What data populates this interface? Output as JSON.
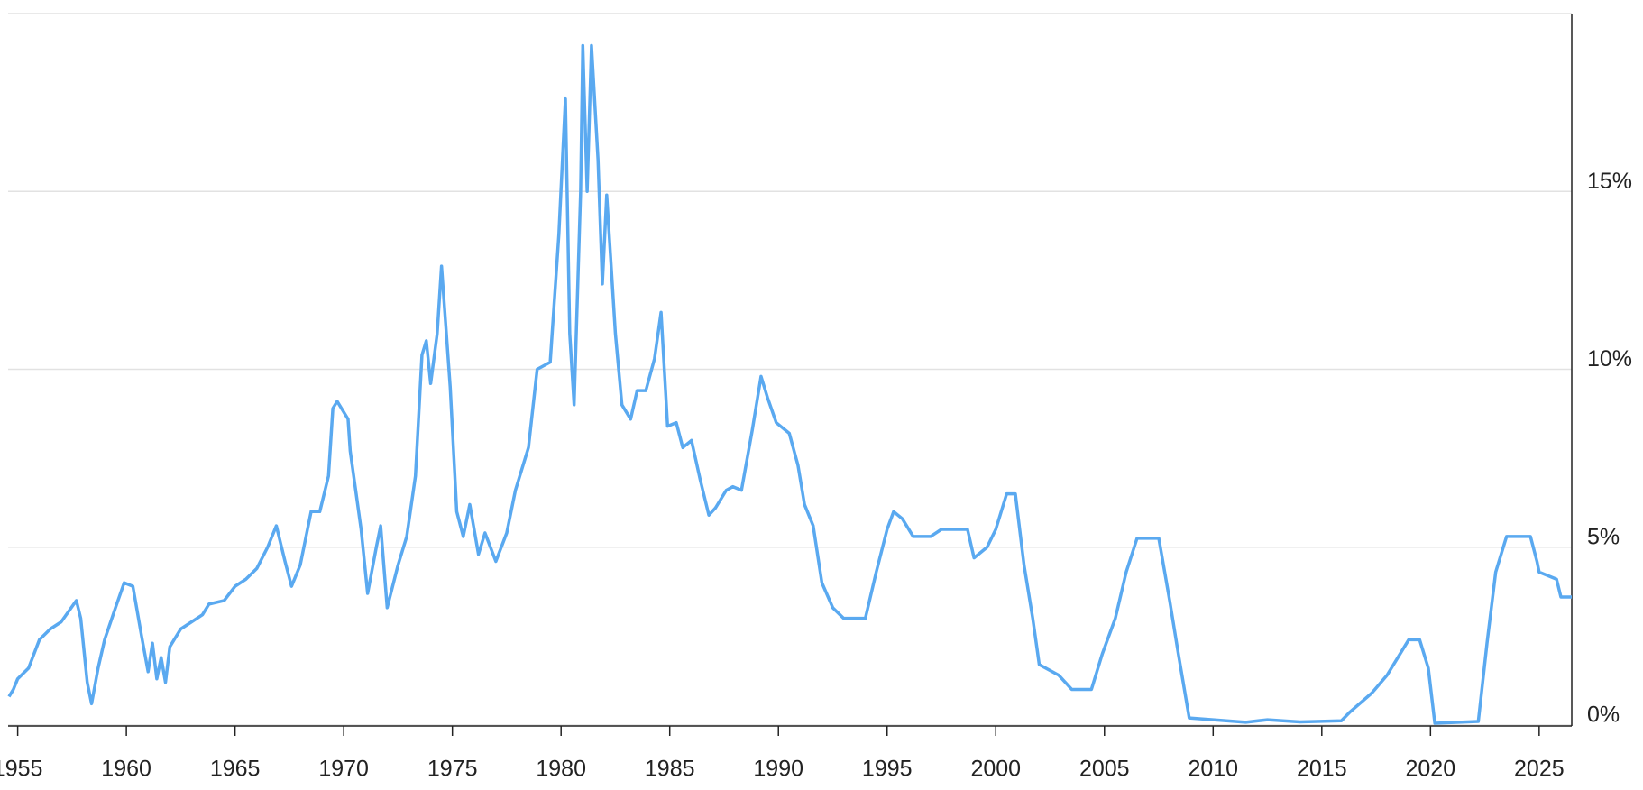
{
  "chart_data": {
    "type": "line",
    "color": "#5aa9f0",
    "x": [
      1954.6,
      1954.8,
      1955.0,
      1955.5,
      1956.0,
      1956.5,
      1957.0,
      1957.7,
      1957.9,
      1958.2,
      1958.4,
      1958.7,
      1959.0,
      1959.5,
      1959.9,
      1960.3,
      1960.7,
      1961.0,
      1961.2,
      1961.4,
      1961.6,
      1961.8,
      1962.0,
      1962.5,
      1963.0,
      1963.5,
      1963.8,
      1964.5,
      1965.0,
      1965.5,
      1966.0,
      1966.5,
      1966.9,
      1967.3,
      1967.6,
      1968.0,
      1968.5,
      1968.9,
      1969.3,
      1969.5,
      1969.7,
      1970.2,
      1970.3,
      1970.8,
      1971.1,
      1971.5,
      1971.7,
      1972.0,
      1972.5,
      1972.9,
      1973.3,
      1973.6,
      1973.8,
      1974.0,
      1974.3,
      1974.5,
      1974.9,
      1975.2,
      1975.5,
      1975.8,
      1976.2,
      1976.5,
      1977.0,
      1977.5,
      1977.9,
      1978.5,
      1978.9,
      1979.5,
      1979.9,
      1980.2,
      1980.4,
      1980.6,
      1980.9,
      1981.0,
      1981.2,
      1981.4,
      1981.7,
      1981.9,
      1982.1,
      1982.5,
      1982.8,
      1983.2,
      1983.5,
      1983.9,
      1984.3,
      1984.6,
      1984.9,
      1985.3,
      1985.6,
      1986.0,
      1986.4,
      1986.8,
      1987.1,
      1987.6,
      1987.9,
      1988.3,
      1988.8,
      1989.2,
      1989.5,
      1989.9,
      1990.5,
      1990.9,
      1991.2,
      1991.6,
      1992.0,
      1992.5,
      1993.0,
      1993.5,
      1994.0,
      1994.5,
      1995.0,
      1995.3,
      1995.7,
      1996.2,
      1997.0,
      1997.5,
      1998.3,
      1998.7,
      1999.0,
      1999.6,
      2000.0,
      2000.5,
      2000.9,
      2001.3,
      2001.7,
      2002.0,
      2002.9,
      2003.5,
      2004.4,
      2004.9,
      2005.5,
      2006.0,
      2006.5,
      2007.5,
      2008.0,
      2008.4,
      2008.9,
      2010.0,
      2011.5,
      2012.5,
      2014.0,
      2015.9,
      2016.3,
      2017.3,
      2018.0,
      2018.5,
      2019.0,
      2019.5,
      2019.9,
      2020.2,
      2022.2,
      2022.6,
      2023.0,
      2023.5,
      2024.6,
      2024.9,
      2025.0,
      2025.8,
      2026.0,
      2026.5
    ],
    "values": [
      0.8,
      1.0,
      1.3,
      1.6,
      2.4,
      2.7,
      2.9,
      3.5,
      3.0,
      1.2,
      0.6,
      1.6,
      2.4,
      3.3,
      4.0,
      3.9,
      2.5,
      1.5,
      2.3,
      1.3,
      1.9,
      1.2,
      2.2,
      2.7,
      2.9,
      3.1,
      3.4,
      3.5,
      3.9,
      4.1,
      4.4,
      5.0,
      5.6,
      4.6,
      3.9,
      4.5,
      6.0,
      6.0,
      7.0,
      8.9,
      9.1,
      8.6,
      7.7,
      5.5,
      3.7,
      5.0,
      5.6,
      3.3,
      4.5,
      5.3,
      7.0,
      10.4,
      10.8,
      9.6,
      11.0,
      12.9,
      9.5,
      6.0,
      5.3,
      6.2,
      4.8,
      5.4,
      4.6,
      5.4,
      6.6,
      7.8,
      10.0,
      10.2,
      13.8,
      17.6,
      11.0,
      9.0,
      15.0,
      19.1,
      15.0,
      19.1,
      15.9,
      12.4,
      14.9,
      11.0,
      9.0,
      8.6,
      9.4,
      9.4,
      10.3,
      11.6,
      8.4,
      8.5,
      7.8,
      8.0,
      6.9,
      5.9,
      6.1,
      6.6,
      6.7,
      6.6,
      8.3,
      9.8,
      9.2,
      8.5,
      8.2,
      7.3,
      6.2,
      5.6,
      4.0,
      3.3,
      3.0,
      3.0,
      3.0,
      4.3,
      5.5,
      6.0,
      5.8,
      5.3,
      5.3,
      5.5,
      5.5,
      5.5,
      4.7,
      5.0,
      5.5,
      6.5,
      6.5,
      4.5,
      3.0,
      1.7,
      1.4,
      1.0,
      1.0,
      2.0,
      3.0,
      4.3,
      5.25,
      5.25,
      3.5,
      2.0,
      0.2,
      0.15,
      0.08,
      0.15,
      0.09,
      0.12,
      0.37,
      0.9,
      1.4,
      1.9,
      2.4,
      2.4,
      1.6,
      0.05,
      0.1,
      2.3,
      4.3,
      5.3,
      5.3,
      4.6,
      4.3,
      4.1,
      3.6,
      3.6
    ],
    "xlim": [
      1954.56,
      2026.5
    ],
    "xticks": [
      1955,
      1960,
      1965,
      1970,
      1975,
      1980,
      1985,
      1990,
      1995,
      2000,
      2005,
      2010,
      2015,
      2020,
      2025
    ],
    "ylim": [
      0,
      20
    ],
    "yticks": [
      {
        "value": 0,
        "label": "0%"
      },
      {
        "value": 5,
        "label": "5%"
      },
      {
        "value": 10,
        "label": "10%"
      },
      {
        "value": 15,
        "label": "15%"
      }
    ],
    "grid": true
  }
}
